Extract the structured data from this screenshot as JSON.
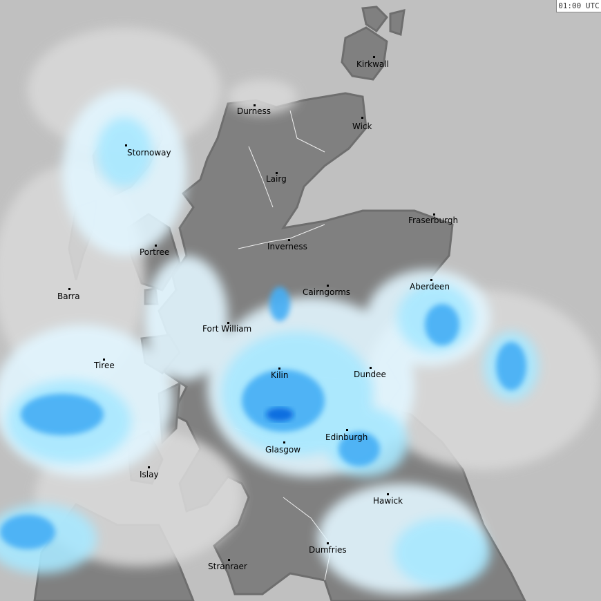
{
  "timestamp": "01:00 UTC",
  "colors": {
    "sea": "#c0c0c0",
    "land": "#808080",
    "coastline": "#6e6e6e",
    "cloud": "#d8d8d8",
    "rain_very_light": "#e2f6ff",
    "rain_light": "#a8e8ff",
    "rain_moderate": "#44aef5",
    "rain_heavy": "#0a6ee0"
  },
  "places": [
    {
      "name": "Kirkwall"
    },
    {
      "name": "Durness"
    },
    {
      "name": "Wick"
    },
    {
      "name": "Stornoway"
    },
    {
      "name": "Lairg"
    },
    {
      "name": "Fraserburgh"
    },
    {
      "name": "Inverness"
    },
    {
      "name": "Portree"
    },
    {
      "name": "Barra"
    },
    {
      "name": "Cairngorms"
    },
    {
      "name": "Aberdeen"
    },
    {
      "name": "Fort William"
    },
    {
      "name": "Tiree"
    },
    {
      "name": "Kilin"
    },
    {
      "name": "Dundee"
    },
    {
      "name": "Edinburgh"
    },
    {
      "name": "Glasgow"
    },
    {
      "name": "Islay"
    },
    {
      "name": "Hawick"
    },
    {
      "name": "Dumfries"
    },
    {
      "name": "Stranraer"
    }
  ]
}
